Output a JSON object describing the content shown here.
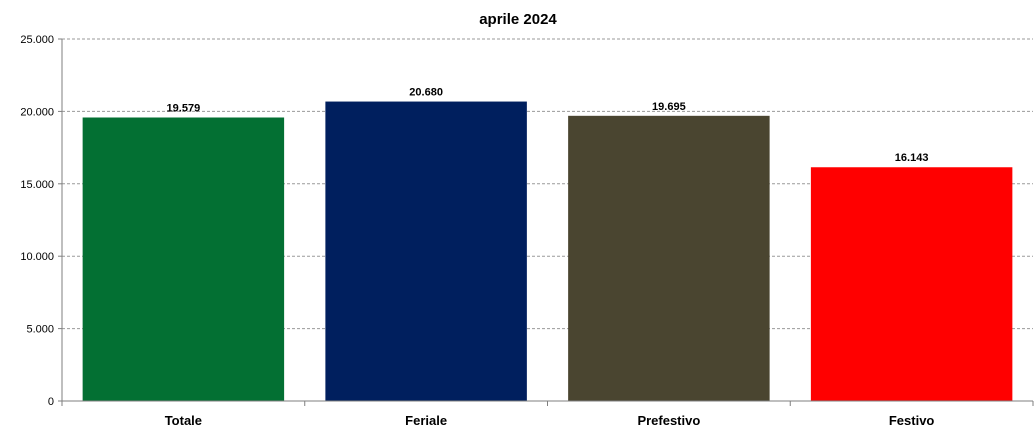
{
  "chart_data": {
    "type": "bar",
    "title": "aprile 2024",
    "categories": [
      "Totale",
      "Feriale",
      "Prefestivo",
      "Festivo"
    ],
    "values": [
      19579,
      20680,
      19695,
      16143
    ],
    "value_labels": [
      "19.579",
      "20.680",
      "19.695",
      "16.143"
    ],
    "colors": [
      "#037033",
      "#001f5e",
      "#4a4530",
      "#ff0000"
    ],
    "ylim": [
      0,
      25000
    ],
    "yticks": [
      0,
      5000,
      10000,
      15000,
      20000,
      25000
    ],
    "ytick_labels": [
      "0",
      "5.000",
      "10.000",
      "15.000",
      "20.000",
      "25.000"
    ],
    "grid": true,
    "legend": "none"
  }
}
